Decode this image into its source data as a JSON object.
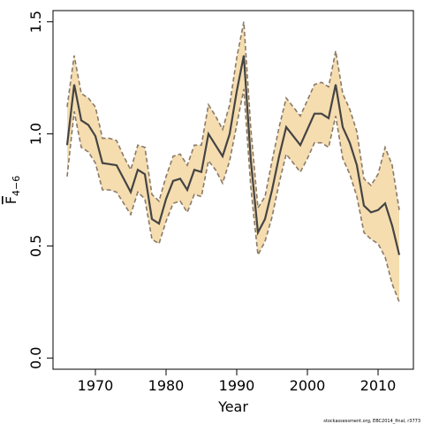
{
  "chart_data": {
    "type": "line",
    "xlabel": "Year",
    "ylabel": "F",
    "ylabel_subscript": "4−6",
    "xlim": [
      1964,
      2015
    ],
    "ylim": [
      -0.05,
      1.55
    ],
    "xticks": [
      1970,
      1980,
      1990,
      2000,
      2010
    ],
    "yticks": [
      0.0,
      0.5,
      1.0,
      1.5
    ],
    "ytick_labels": [
      "0.0",
      "0.5",
      "1.0",
      "1.5"
    ],
    "grid": false,
    "x": [
      1966,
      1967,
      1968,
      1969,
      1970,
      1971,
      1972,
      1973,
      1974,
      1975,
      1976,
      1977,
      1978,
      1979,
      1980,
      1981,
      1982,
      1983,
      1984,
      1985,
      1986,
      1987,
      1988,
      1989,
      1990,
      1991,
      1992,
      1993,
      1994,
      1995,
      1996,
      1997,
      1998,
      1999,
      2000,
      2001,
      2002,
      2003,
      2004,
      2005,
      2006,
      2007,
      2008,
      2009,
      2010,
      2011,
      2012,
      2013
    ],
    "series": [
      {
        "role": "estimate",
        "color": "#444444",
        "values": [
          0.95,
          1.22,
          1.06,
          1.04,
          0.99,
          0.87,
          0.865,
          0.86,
          0.8,
          0.74,
          0.84,
          0.82,
          0.62,
          0.6,
          0.71,
          0.79,
          0.8,
          0.75,
          0.84,
          0.83,
          1.0,
          0.95,
          0.9,
          1.0,
          1.19,
          1.35,
          0.88,
          0.56,
          0.62,
          0.75,
          0.9,
          1.03,
          0.99,
          0.95,
          1.02,
          1.09,
          1.09,
          1.07,
          1.22,
          1.03,
          0.96,
          0.86,
          0.68,
          0.65,
          0.66,
          0.69,
          0.59,
          0.46
        ]
      },
      {
        "role": "upper",
        "color": "#8a7a66",
        "values": [
          1.12,
          1.35,
          1.18,
          1.16,
          1.12,
          0.98,
          0.98,
          0.97,
          0.9,
          0.84,
          0.95,
          0.94,
          0.73,
          0.7,
          0.81,
          0.9,
          0.91,
          0.86,
          0.95,
          0.95,
          1.13,
          1.08,
          1.02,
          1.13,
          1.34,
          1.5,
          1.02,
          0.67,
          0.72,
          0.88,
          1.03,
          1.16,
          1.12,
          1.08,
          1.15,
          1.22,
          1.23,
          1.21,
          1.37,
          1.18,
          1.11,
          1.01,
          0.8,
          0.77,
          0.82,
          0.94,
          0.86,
          0.66
        ]
      },
      {
        "role": "lower",
        "color": "#8a7a66",
        "values": [
          0.81,
          1.1,
          0.94,
          0.92,
          0.87,
          0.75,
          0.75,
          0.74,
          0.69,
          0.64,
          0.74,
          0.71,
          0.53,
          0.51,
          0.61,
          0.69,
          0.7,
          0.65,
          0.73,
          0.72,
          0.88,
          0.84,
          0.78,
          0.88,
          1.04,
          1.2,
          0.76,
          0.46,
          0.52,
          0.63,
          0.78,
          0.91,
          0.87,
          0.83,
          0.89,
          0.96,
          0.96,
          0.94,
          1.08,
          0.89,
          0.82,
          0.72,
          0.56,
          0.53,
          0.51,
          0.45,
          0.33,
          0.25
        ]
      }
    ],
    "band_color": "#f5ddb0",
    "credit": "stockassessment.org, EBC2014_final, r3773"
  }
}
